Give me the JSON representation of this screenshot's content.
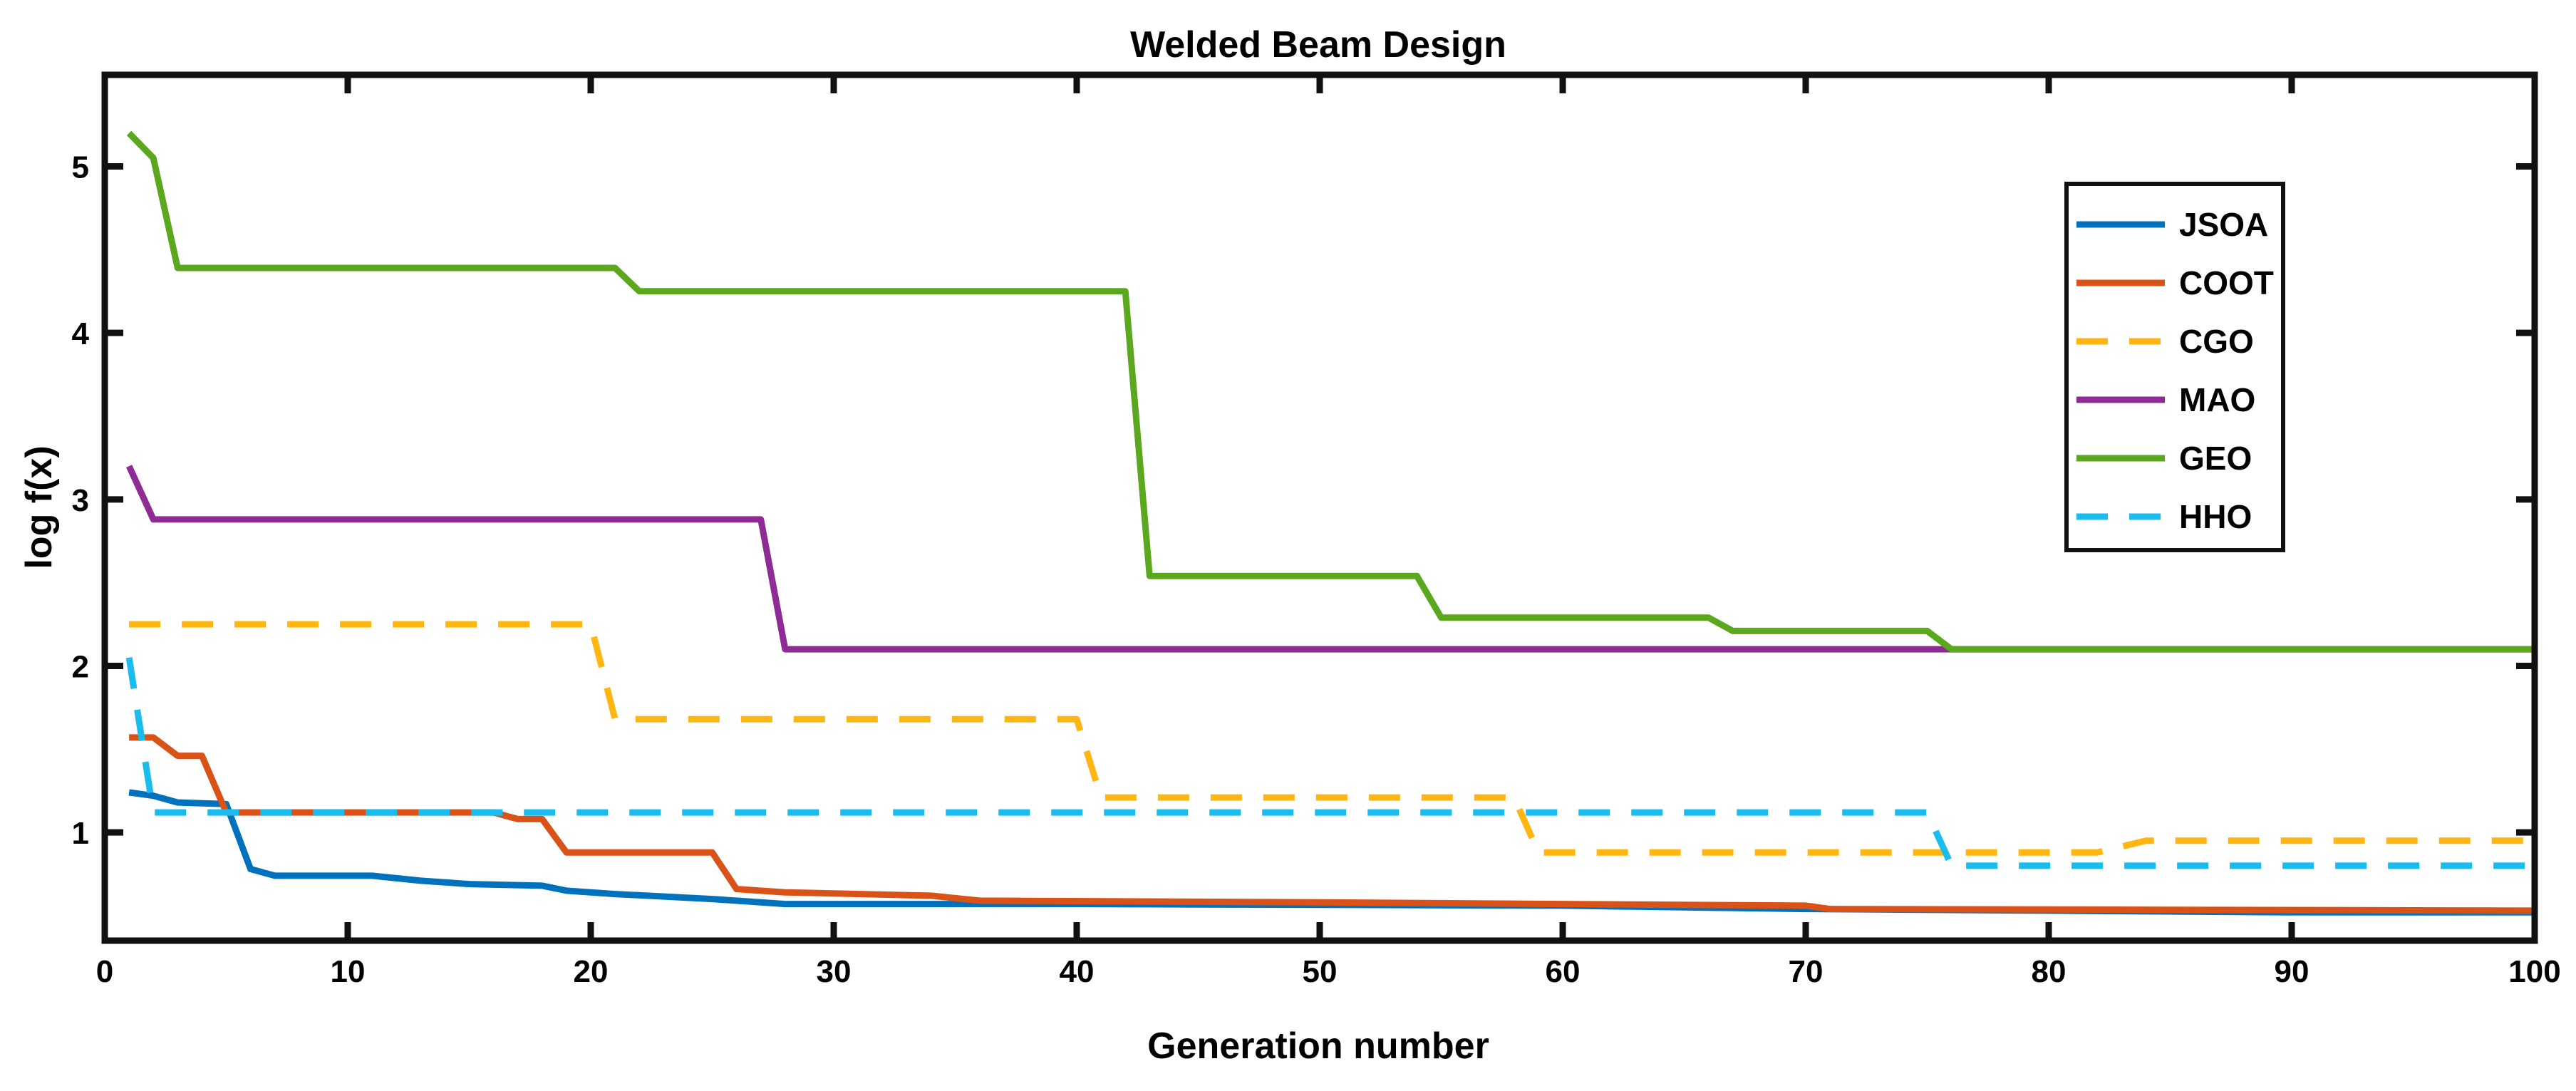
{
  "chart_data": {
    "type": "line",
    "title": "Welded Beam Design",
    "xlabel": "Generation number",
    "ylabel": "log f(x)",
    "xlim": [
      0,
      100
    ],
    "ylim": [
      0.35,
      5.55
    ],
    "xticks": [
      0,
      10,
      20,
      30,
      40,
      50,
      60,
      70,
      80,
      90,
      100
    ],
    "yticks": [
      1,
      2,
      3,
      4,
      5
    ],
    "legend_position": "top-right",
    "series": [
      {
        "name": "JSOA",
        "color": "#0072BD",
        "dash": "solid",
        "points": [
          [
            1,
            1.24
          ],
          [
            2,
            1.22
          ],
          [
            3,
            1.18
          ],
          [
            5,
            1.17
          ],
          [
            6,
            0.78
          ],
          [
            7,
            0.74
          ],
          [
            11,
            0.74
          ],
          [
            13,
            0.71
          ],
          [
            15,
            0.69
          ],
          [
            18,
            0.68
          ],
          [
            19,
            0.65
          ],
          [
            21,
            0.63
          ],
          [
            25,
            0.6
          ],
          [
            27,
            0.58
          ],
          [
            28,
            0.57
          ],
          [
            40,
            0.57
          ],
          [
            60,
            0.56
          ],
          [
            70,
            0.54
          ],
          [
            80,
            0.53
          ],
          [
            90,
            0.52
          ],
          [
            100,
            0.52
          ]
        ]
      },
      {
        "name": "COOT",
        "color": "#D95319",
        "dash": "solid",
        "points": [
          [
            1,
            1.57
          ],
          [
            2,
            1.57
          ],
          [
            3,
            1.46
          ],
          [
            4,
            1.46
          ],
          [
            5,
            1.12
          ],
          [
            16,
            1.12
          ],
          [
            17,
            1.08
          ],
          [
            18,
            1.08
          ],
          [
            19,
            0.88
          ],
          [
            25,
            0.88
          ],
          [
            26,
            0.66
          ],
          [
            28,
            0.64
          ],
          [
            34,
            0.62
          ],
          [
            36,
            0.59
          ],
          [
            50,
            0.58
          ],
          [
            70,
            0.56
          ],
          [
            71,
            0.54
          ],
          [
            100,
            0.53
          ]
        ]
      },
      {
        "name": "CGO",
        "color": "#FFB612",
        "dash": "dashed",
        "points": [
          [
            1,
            2.25
          ],
          [
            20,
            2.25
          ],
          [
            21,
            1.68
          ],
          [
            40,
            1.68
          ],
          [
            41,
            1.21
          ],
          [
            58,
            1.21
          ],
          [
            59,
            0.88
          ],
          [
            82,
            0.88
          ],
          [
            84,
            0.95
          ],
          [
            100,
            0.95
          ]
        ]
      },
      {
        "name": "MAO",
        "color": "#8E2B95",
        "dash": "solid",
        "points": [
          [
            1,
            3.2
          ],
          [
            2,
            2.88
          ],
          [
            27,
            2.88
          ],
          [
            28,
            2.1
          ],
          [
            76,
            2.1
          ],
          [
            100,
            2.1
          ]
        ]
      },
      {
        "name": "GEO",
        "color": "#5BA71E",
        "dash": "solid",
        "points": [
          [
            1,
            5.2
          ],
          [
            2,
            5.05
          ],
          [
            3,
            4.39
          ],
          [
            21,
            4.39
          ],
          [
            22,
            4.25
          ],
          [
            42,
            4.25
          ],
          [
            43,
            2.54
          ],
          [
            54,
            2.54
          ],
          [
            55,
            2.29
          ],
          [
            66,
            2.29
          ],
          [
            67,
            2.21
          ],
          [
            75,
            2.21
          ],
          [
            76,
            2.1
          ],
          [
            100,
            2.1
          ]
        ]
      },
      {
        "name": "HHO",
        "color": "#1ABCEE",
        "dash": "dashed",
        "points": [
          [
            1,
            2.05
          ],
          [
            2,
            1.12
          ],
          [
            75,
            1.12
          ],
          [
            76,
            0.8
          ],
          [
            100,
            0.8
          ]
        ]
      }
    ]
  }
}
